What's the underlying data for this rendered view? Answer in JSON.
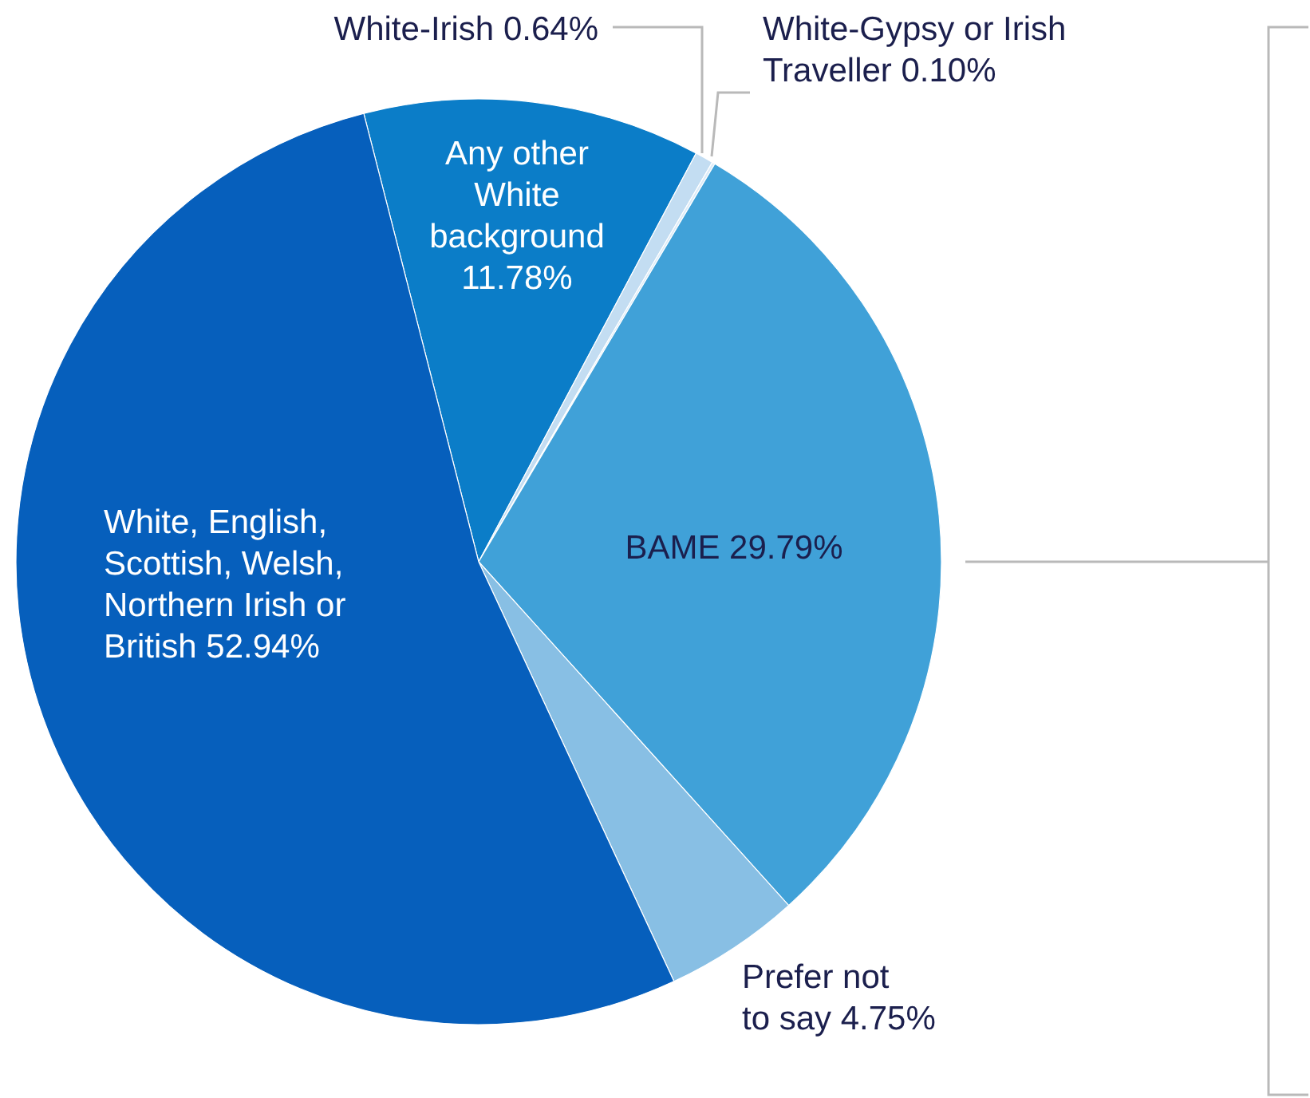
{
  "chart_data": {
    "type": "pie",
    "categories": [
      "Any other White background",
      "White-Irish",
      "White-Gypsy or Irish Traveller",
      "BAME",
      "Prefer not to say",
      "White, English, Scottish, Welsh, Northern Irish or British"
    ],
    "values": [
      11.78,
      0.64,
      0.1,
      29.79,
      4.75,
      52.94
    ],
    "value_labels": [
      "11.78%",
      "0.64%",
      "0.10%",
      "29.79%",
      "4.75%",
      "52.94%"
    ],
    "colors": [
      "#0b7dc8",
      "#c3ddf2",
      "#dcebf8",
      "#40a1d8",
      "#88bfe4",
      "#065fbc"
    ]
  }
}
